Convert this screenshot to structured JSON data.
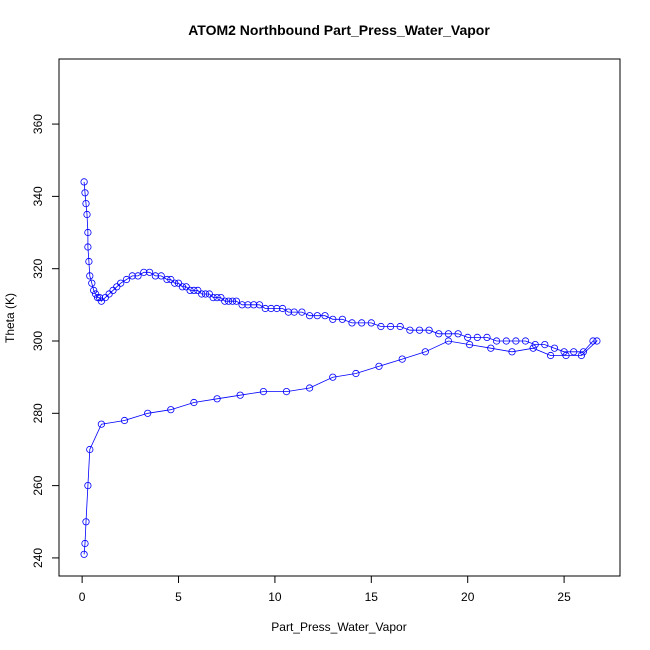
{
  "chart_data": {
    "type": "scatter",
    "title": "ATOM2 Northbound Part_Press_Water_Vapor",
    "xlabel": "Part_Press_Water_Vapor",
    "ylabel": "Theta (K)",
    "xlim": [
      -1.2,
      27.9
    ],
    "ylim": [
      235,
      378
    ],
    "xticks": [
      "0",
      "5",
      "10",
      "15",
      "20",
      "25"
    ],
    "yticks": [
      "240",
      "260",
      "280",
      "300",
      "320",
      "340",
      "360"
    ],
    "grid": false,
    "legend": "none",
    "series": [
      {
        "color": "#0000ff",
        "marker": "open-circle",
        "connected": true,
        "x": [
          0.1,
          0.15,
          0.2,
          0.25,
          0.3,
          0.3,
          0.35,
          0.4,
          0.5,
          0.6,
          0.7,
          0.8,
          0.9,
          1.0,
          1.2,
          1.4,
          1.6,
          1.8,
          2.0,
          2.3,
          2.6,
          2.9,
          3.2,
          3.5,
          3.8,
          4.1,
          4.4,
          4.6,
          4.8,
          5.0,
          5.2,
          5.4,
          5.6,
          5.8,
          6.0,
          6.2,
          6.4,
          6.6,
          6.8,
          7.0,
          7.2,
          7.4,
          7.6,
          7.8,
          8.0,
          8.3,
          8.6,
          8.9,
          9.2,
          9.5,
          9.8,
          10.1,
          10.4,
          10.7,
          11.0,
          11.4,
          11.8,
          12.2,
          12.6,
          13.0,
          13.5,
          14.0,
          14.5,
          15.0,
          15.5,
          16.0,
          16.5,
          17.0,
          17.5,
          18.0,
          18.5,
          19.0,
          19.5,
          20.0,
          20.5,
          21.0,
          21.5,
          22.0,
          22.5,
          23.0,
          23.5,
          24.0,
          24.5,
          25.0,
          25.5,
          26.0,
          26.5,
          26.7,
          25.9,
          25.1,
          24.3,
          23.4,
          22.3,
          21.2,
          20.1,
          19.0,
          17.8,
          16.6,
          15.4,
          14.2,
          13.0,
          11.8,
          10.6,
          9.4,
          8.2,
          7.0,
          5.8,
          4.6,
          3.4,
          2.2,
          1.0,
          0.4,
          0.3,
          0.2,
          0.15,
          0.1
        ],
        "y": [
          344,
          341,
          338,
          335,
          330,
          326,
          322,
          318,
          316,
          314,
          313,
          312,
          312,
          311,
          312,
          313,
          314,
          315,
          316,
          317,
          318,
          318,
          319,
          319,
          318,
          318,
          317,
          317,
          316,
          316,
          315,
          315,
          314,
          314,
          314,
          313,
          313,
          313,
          312,
          312,
          312,
          311,
          311,
          311,
          311,
          310,
          310,
          310,
          310,
          309,
          309,
          309,
          309,
          308,
          308,
          308,
          307,
          307,
          307,
          306,
          306,
          305,
          305,
          305,
          304,
          304,
          304,
          303,
          303,
          303,
          302,
          302,
          302,
          301,
          301,
          301,
          300,
          300,
          300,
          300,
          299,
          299,
          298,
          297,
          297,
          297,
          300,
          300,
          296,
          296,
          296,
          298,
          297,
          298,
          299,
          300,
          297,
          295,
          293,
          291,
          290,
          287,
          286,
          286,
          285,
          284,
          283,
          281,
          280,
          278,
          277,
          270,
          260,
          250,
          244,
          241
        ]
      }
    ]
  }
}
